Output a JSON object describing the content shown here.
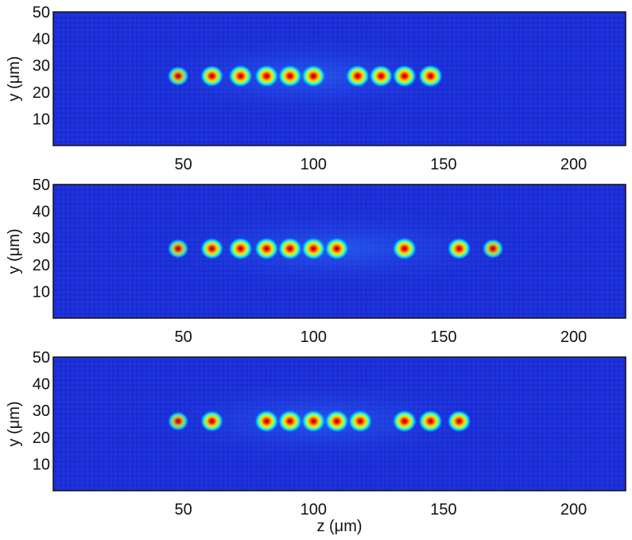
{
  "chart_data": [
    {
      "type": "heatmap",
      "xlabel": "",
      "ylabel": "y (μm)",
      "xlim": [
        0,
        220
      ],
      "ylim": [
        0,
        50
      ],
      "xticks": [
        50,
        100,
        150,
        200
      ],
      "yticks": [
        10,
        20,
        30,
        40,
        50
      ],
      "spots": [
        {
          "z": 48,
          "y": 26,
          "intensity": 0.62
        },
        {
          "z": 61,
          "y": 26,
          "intensity": 0.85
        },
        {
          "z": 72,
          "y": 26,
          "intensity": 0.95
        },
        {
          "z": 82,
          "y": 26,
          "intensity": 0.95
        },
        {
          "z": 91,
          "y": 26,
          "intensity": 0.95
        },
        {
          "z": 100,
          "y": 26,
          "intensity": 0.95
        },
        {
          "z": 117,
          "y": 26,
          "intensity": 0.95
        },
        {
          "z": 126,
          "y": 26,
          "intensity": 0.92
        },
        {
          "z": 135,
          "y": 26,
          "intensity": 0.95
        },
        {
          "z": 145,
          "y": 26,
          "intensity": 1.0
        }
      ]
    },
    {
      "type": "heatmap",
      "xlabel": "",
      "ylabel": "y (μm)",
      "xlim": [
        0,
        220
      ],
      "ylim": [
        0,
        50
      ],
      "xticks": [
        50,
        100,
        150,
        200
      ],
      "yticks": [
        10,
        20,
        30,
        40,
        50
      ],
      "spots": [
        {
          "z": 48,
          "y": 26,
          "intensity": 0.58
        },
        {
          "z": 61,
          "y": 26,
          "intensity": 0.85
        },
        {
          "z": 72,
          "y": 26,
          "intensity": 0.95
        },
        {
          "z": 82,
          "y": 26,
          "intensity": 0.95
        },
        {
          "z": 91,
          "y": 26,
          "intensity": 0.95
        },
        {
          "z": 100,
          "y": 26,
          "intensity": 0.95
        },
        {
          "z": 109,
          "y": 26,
          "intensity": 0.95
        },
        {
          "z": 135,
          "y": 26,
          "intensity": 0.95
        },
        {
          "z": 156,
          "y": 26,
          "intensity": 0.88
        },
        {
          "z": 169,
          "y": 26,
          "intensity": 0.62
        }
      ]
    },
    {
      "type": "heatmap",
      "xlabel": "z (μm)",
      "ylabel": "y (μm)",
      "xlim": [
        0,
        220
      ],
      "ylim": [
        0,
        50
      ],
      "xticks": [
        50,
        100,
        150,
        200
      ],
      "yticks": [
        10,
        20,
        30,
        40,
        50
      ],
      "spots": [
        {
          "z": 48,
          "y": 26,
          "intensity": 0.55
        },
        {
          "z": 61,
          "y": 26,
          "intensity": 0.82
        },
        {
          "z": 82,
          "y": 26,
          "intensity": 0.95
        },
        {
          "z": 91,
          "y": 26,
          "intensity": 0.95
        },
        {
          "z": 100,
          "y": 26,
          "intensity": 0.95
        },
        {
          "z": 109,
          "y": 26,
          "intensity": 0.95
        },
        {
          "z": 118,
          "y": 26,
          "intensity": 0.95
        },
        {
          "z": 135,
          "y": 26,
          "intensity": 0.95
        },
        {
          "z": 145,
          "y": 26,
          "intensity": 0.95
        },
        {
          "z": 156,
          "y": 26,
          "intensity": 0.9
        }
      ]
    }
  ],
  "colors": {
    "background": "#1c2fd8",
    "colormap": [
      "#0a16c8",
      "#0060ff",
      "#00d8ff",
      "#80ff80",
      "#ffff00",
      "#ff7a00",
      "#b00000"
    ]
  }
}
